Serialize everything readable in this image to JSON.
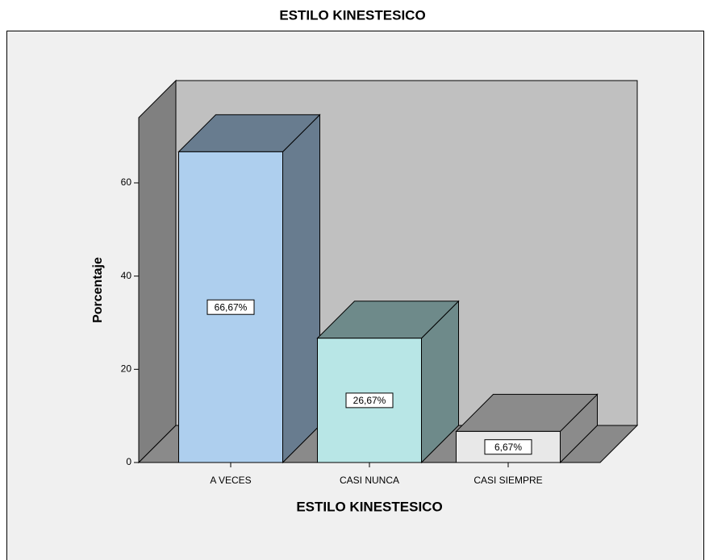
{
  "chart_data": {
    "type": "bar3d",
    "title": "ESTILO KINESTESICO",
    "x_label": "ESTILO KINESTESICO",
    "y_label": "Porcentaje",
    "categories": [
      "A VECES",
      "CASI NUNCA",
      "CASI SIEMPRE"
    ],
    "values": [
      66.67,
      26.67,
      6.67
    ],
    "value_labels": [
      "66,67%",
      "26,67%",
      "6,67%"
    ],
    "colors": [
      "#aecfee",
      "#b8e6e6",
      "#e8e8e8"
    ],
    "ylim": [
      0,
      74
    ],
    "yticks": [
      0,
      20,
      40,
      60
    ]
  }
}
